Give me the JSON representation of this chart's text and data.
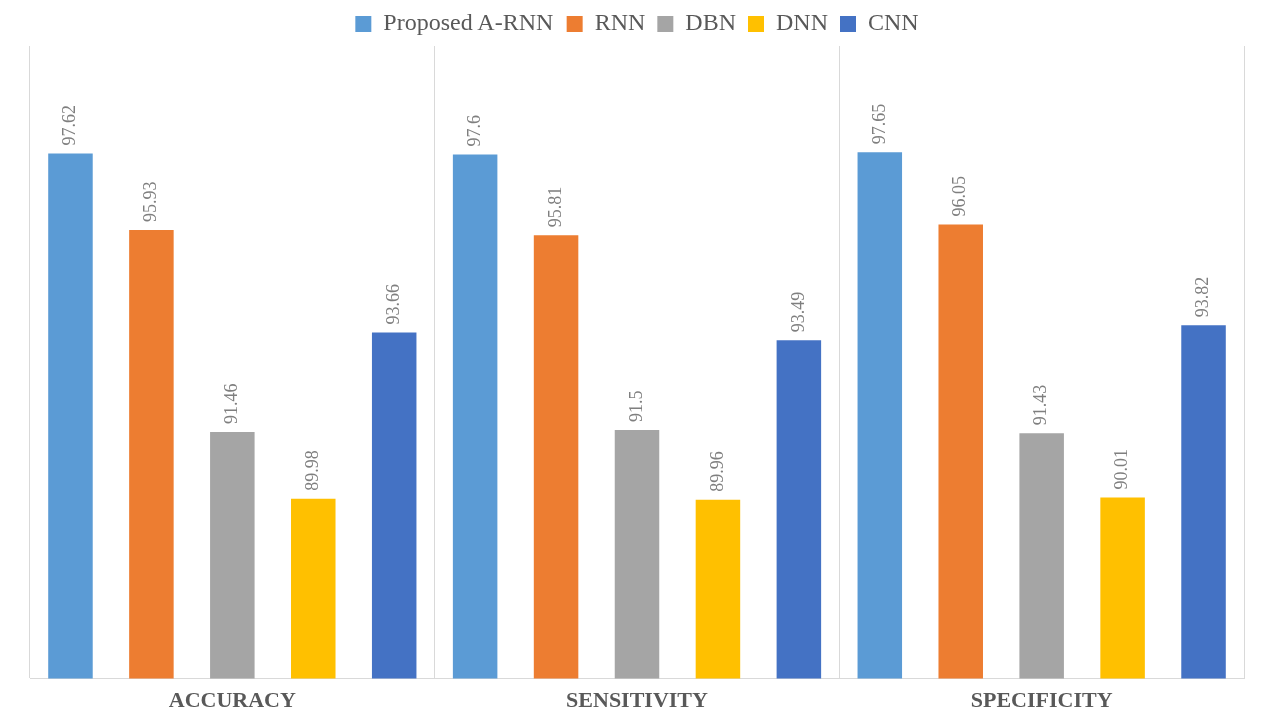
{
  "chart_data": {
    "type": "bar",
    "categories": [
      "ACCURACY",
      "SENSITIVITY",
      "SPECIFICITY"
    ],
    "series": [
      {
        "name": "Proposed A-RNN",
        "color": "#5b9bd5",
        "values": [
          97.62,
          97.6,
          97.65
        ]
      },
      {
        "name": "RNN",
        "color": "#ed7d31",
        "values": [
          95.93,
          95.81,
          96.05
        ]
      },
      {
        "name": "DBN",
        "color": "#a5a5a5",
        "values": [
          91.46,
          91.5,
          91.43
        ]
      },
      {
        "name": "DNN",
        "color": "#ffc000",
        "values": [
          89.98,
          89.96,
          90.01
        ]
      },
      {
        "name": "CNN",
        "color": "#4472c4",
        "values": [
          93.66,
          93.49,
          93.82
        ]
      }
    ],
    "ylim": [
      86,
      100
    ],
    "data_labels": true,
    "legend": "top",
    "grid": "x",
    "tick_labels": "x"
  }
}
